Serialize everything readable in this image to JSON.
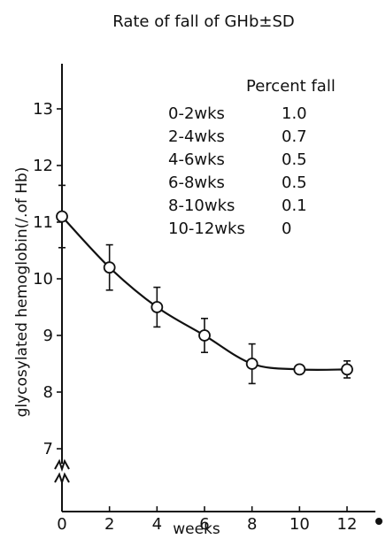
{
  "chart_data": {
    "type": "line",
    "title": "Rate of fall of GHb±SD",
    "xlabel": "weeks",
    "ylabel": "glycosylated hemoglobin(/.of Hb)",
    "x": [
      0,
      2,
      4,
      6,
      8,
      10,
      12
    ],
    "series": [
      {
        "values": [
          11.1,
          10.2,
          9.5,
          9.0,
          8.5,
          8.4,
          8.4
        ],
        "sd": [
          0.55,
          0.4,
          0.35,
          0.3,
          0.35,
          0.05,
          0.15
        ]
      }
    ],
    "xticks": [
      0,
      2,
      4,
      6,
      8,
      10,
      12
    ],
    "yticks": [
      7,
      8,
      9,
      10,
      11,
      12,
      13
    ],
    "xlim": [
      0,
      13
    ],
    "ylim": [
      6.5,
      13.8
    ],
    "y_axis_break": true,
    "grid": false,
    "legend": {
      "heading": "Percent fall",
      "position": "top-right",
      "rows": [
        {
          "interval": "0-2wks",
          "value": "1.0"
        },
        {
          "interval": "2-4wks",
          "value": "0.7"
        },
        {
          "interval": "4-6wks",
          "value": "0.5"
        },
        {
          "interval": "6-8wks",
          "value": "0.5"
        },
        {
          "interval": "8-10wks",
          "value": "0.1"
        },
        {
          "interval": "10-12wks",
          "value": "0"
        }
      ]
    }
  }
}
